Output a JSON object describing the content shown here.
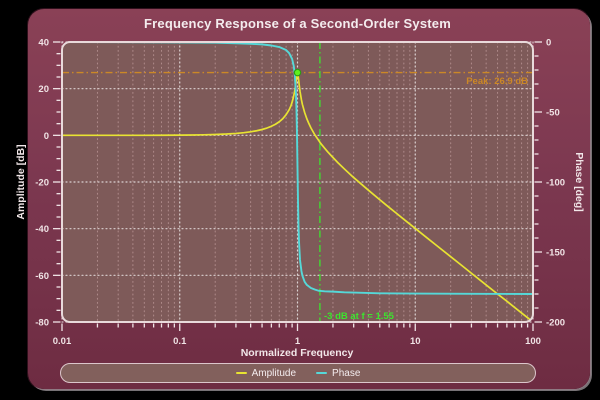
{
  "window": {
    "title": "Frequency Response of a Second-Order System"
  },
  "colors": {
    "background": "#000000",
    "card_top": "#8a4156",
    "card_bottom": "#6e2c42",
    "plot_background": "#7e5a59",
    "grid_major": "#ffffff",
    "grid_minor": "#ffd9d9",
    "tick_text": "#f0e3e5",
    "amplitude": "#e8e332",
    "phase": "#55d8d8",
    "peak_annotation": "#cc8826",
    "cutoff_annotation": "#3ce52e",
    "marker_fill": "#5ef01e",
    "marker_edge": "#2c9a12"
  },
  "legend": {
    "items": [
      {
        "label": "Amplitude",
        "color": "#e8e332"
      },
      {
        "label": "Phase",
        "color": "#55d8d8"
      }
    ]
  },
  "chart_data": {
    "type": "line",
    "title": "Frequency Response of a Second-Order System",
    "xlabel": "Normalized Frequency",
    "x_scale": "log",
    "xlim": [
      0.01,
      100
    ],
    "x_ticks": [
      0.01,
      0.1,
      1,
      10,
      100
    ],
    "x_tick_labels": [
      "0.01",
      "0.1",
      "1",
      "10",
      "100"
    ],
    "grid": "dotted",
    "legend_position": "bottom",
    "axes": {
      "left": {
        "label": "Amplitude [dB]",
        "lim": [
          -80,
          40
        ],
        "major_ticks": [
          40,
          20,
          0,
          -20,
          -40,
          -60,
          -80
        ],
        "minor_step": 5
      },
      "right": {
        "label": "Phase [deg]",
        "lim": [
          -200,
          0
        ],
        "major_ticks": [
          0,
          -50,
          -100,
          -150,
          -200
        ],
        "minor_step": 10
      }
    },
    "series": [
      {
        "name": "Amplitude",
        "axis": "left",
        "color": "#e8e332",
        "points": [
          [
            0.01,
            0
          ],
          [
            0.02,
            0.01
          ],
          [
            0.03,
            0.01
          ],
          [
            0.05,
            0.02
          ],
          [
            0.07,
            0.04
          ],
          [
            0.1,
            0.09
          ],
          [
            0.13,
            0.15
          ],
          [
            0.16,
            0.23
          ],
          [
            0.2,
            0.36
          ],
          [
            0.25,
            0.56
          ],
          [
            0.3,
            0.82
          ],
          [
            0.35,
            1.13
          ],
          [
            0.4,
            1.51
          ],
          [
            0.45,
            1.97
          ],
          [
            0.5,
            2.5
          ],
          [
            0.55,
            3.14
          ],
          [
            0.6,
            3.87
          ],
          [
            0.65,
            4.76
          ],
          [
            0.7,
            5.83
          ],
          [
            0.75,
            7.13
          ],
          [
            0.8,
            8.84
          ],
          [
            0.85,
            11.0
          ],
          [
            0.88,
            12.7
          ],
          [
            0.9,
            14.2
          ],
          [
            0.92,
            16.0
          ],
          [
            0.94,
            18.2
          ],
          [
            0.95,
            19.4
          ],
          [
            0.96,
            20.9
          ],
          [
            0.97,
            22.7
          ],
          [
            0.98,
            24.5
          ],
          [
            0.99,
            26.2
          ],
          [
            1.0,
            26.9
          ],
          [
            1.01,
            26.0
          ],
          [
            1.02,
            24.2
          ],
          [
            1.03,
            22.3
          ],
          [
            1.05,
            18.9
          ],
          [
            1.08,
            15.2
          ],
          [
            1.1,
            13.3
          ],
          [
            1.15,
            9.8
          ],
          [
            1.2,
            7.1
          ],
          [
            1.25,
            5.0
          ],
          [
            1.3,
            3.2
          ],
          [
            1.4,
            0.3
          ],
          [
            1.5,
            -1.9
          ],
          [
            1.55,
            -3.0
          ],
          [
            1.6,
            -3.9
          ],
          [
            1.7,
            -5.5
          ],
          [
            1.8,
            -7.0
          ],
          [
            2.0,
            -9.5
          ],
          [
            2.2,
            -11.7
          ],
          [
            2.5,
            -14.4
          ],
          [
            3.0,
            -18.1
          ],
          [
            3.5,
            -21.0
          ],
          [
            4.0,
            -23.5
          ],
          [
            5.0,
            -27.6
          ],
          [
            6.0,
            -30.9
          ],
          [
            7.0,
            -33.6
          ],
          [
            8.0,
            -36.0
          ],
          [
            10,
            -39.9
          ],
          [
            13,
            -44.5
          ],
          [
            15,
            -47.0
          ],
          [
            20,
            -52.0
          ],
          [
            25,
            -55.9
          ],
          [
            30,
            -59.1
          ],
          [
            40,
            -64.1
          ],
          [
            50,
            -68.0
          ],
          [
            60,
            -71.1
          ],
          [
            70,
            -73.8
          ],
          [
            85,
            -77.2
          ],
          [
            100,
            -80.0
          ]
        ]
      },
      {
        "name": "Phase",
        "axis": "right",
        "color": "#55d8d8",
        "points": [
          [
            0.01,
            0
          ],
          [
            0.1,
            -0.3
          ],
          [
            0.2,
            -0.5
          ],
          [
            0.3,
            -0.9
          ],
          [
            0.4,
            -1.3
          ],
          [
            0.5,
            -1.7
          ],
          [
            0.6,
            -2.5
          ],
          [
            0.7,
            -3.6
          ],
          [
            0.8,
            -5.7
          ],
          [
            0.85,
            -8.0
          ],
          [
            0.9,
            -12.1
          ],
          [
            0.93,
            -17.3
          ],
          [
            0.95,
            -23.9
          ],
          [
            0.97,
            -36.9
          ],
          [
            0.98,
            -48.2
          ],
          [
            0.99,
            -65.8
          ],
          [
            1.0,
            -90
          ],
          [
            1.01,
            -113.7
          ],
          [
            1.02,
            -131.2
          ],
          [
            1.03,
            -142.6
          ],
          [
            1.05,
            -155.7
          ],
          [
            1.08,
            -163.6
          ],
          [
            1.1,
            -166.8
          ],
          [
            1.15,
            -171.3
          ],
          [
            1.2,
            -173.5
          ],
          [
            1.3,
            -175.7
          ],
          [
            1.4,
            -176.8
          ],
          [
            1.5,
            -177.6
          ],
          [
            1.7,
            -178.1
          ],
          [
            2.0,
            -178.3
          ],
          [
            2.5,
            -178.8
          ],
          [
            3.0,
            -179.0
          ],
          [
            5.0,
            -179.5
          ],
          [
            10,
            -179.7
          ],
          [
            30,
            -179.9
          ],
          [
            100,
            -180
          ]
        ]
      }
    ],
    "annotations": {
      "peak_line": {
        "y": 26.9,
        "axis": "left",
        "label": "Peak: 26.9 dB",
        "color": "#cc8826",
        "style": "dash-dot"
      },
      "cutoff_line": {
        "x": 1.55,
        "label": "-3 dB at f = 1.55",
        "color": "#3ce52e",
        "style": "dash-dot"
      },
      "peak_marker": {
        "x": 1.0,
        "y": 26.9,
        "axis": "left",
        "fill": "#5ef01e",
        "edge": "#2c9a12"
      }
    }
  }
}
